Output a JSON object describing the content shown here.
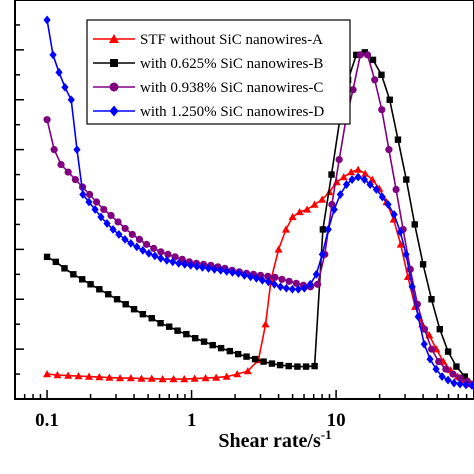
{
  "chart_data": {
    "type": "line",
    "title": "",
    "xlabel": "Shear rate/s",
    "xlabel_superscript": "-1",
    "ylabel": "",
    "x_scale": "log",
    "xlim": [
      0.06,
      90
    ],
    "ylim": [
      0,
      800
    ],
    "x_tick_labels": [
      "0.1",
      "1",
      "10"
    ],
    "x_tick_values": [
      0.1,
      1,
      10
    ],
    "grid": false,
    "legend_position": "top-right",
    "series": [
      {
        "name": "STF without SiC nanowires-A",
        "color": "#ff0000",
        "marker": "triangle",
        "x": [
          0.1,
          0.118,
          0.14,
          0.165,
          0.195,
          0.23,
          0.27,
          0.32,
          0.38,
          0.45,
          0.53,
          0.63,
          0.75,
          0.89,
          1.05,
          1.25,
          1.48,
          1.75,
          2.07,
          2.45,
          2.9,
          3.25,
          3.55,
          4.0,
          4.5,
          5.0,
          5.6,
          6.3,
          7.1,
          8.0,
          9.0,
          10.1,
          11.3,
          12.7,
          14.2,
          15.9,
          17.8,
          19.9,
          22.3,
          25.0,
          28.0,
          31.4,
          35.2,
          39.4,
          44.1,
          49.4,
          55.3,
          62.0,
          69.4,
          77.7,
          87.0
        ],
        "y": [
          50,
          48,
          47,
          46,
          45,
          44,
          43,
          42,
          42,
          41,
          41,
          40,
          40,
          40,
          41,
          42,
          43,
          45,
          50,
          56,
          78,
          150,
          240,
          300,
          340,
          365,
          375,
          380,
          390,
          400,
          415,
          435,
          445,
          455,
          460,
          452,
          440,
          422,
          395,
          360,
          310,
          245,
          185,
          150,
          128,
          100,
          75,
          58,
          45,
          38,
          30
        ]
      },
      {
        "name": "with 0.625% SiC nanowires-B",
        "color": "#000000",
        "marker": "square",
        "x": [
          0.1,
          0.115,
          0.132,
          0.152,
          0.175,
          0.2,
          0.23,
          0.265,
          0.305,
          0.35,
          0.4,
          0.46,
          0.53,
          0.61,
          0.7,
          0.8,
          0.92,
          1.06,
          1.22,
          1.4,
          1.6,
          1.84,
          2.1,
          2.4,
          2.75,
          3.15,
          3.6,
          4.1,
          4.7,
          5.4,
          6.2,
          7.1,
          8.1,
          9.3,
          10.6,
          12.1,
          13.8,
          15.8,
          18.0,
          20.6,
          23.5,
          26.8,
          30.6,
          35.0,
          40.0,
          45.7,
          52.2,
          59.6,
          68.0,
          77.7,
          88.7
        ],
        "y": [
          285,
          275,
          262,
          250,
          240,
          230,
          220,
          210,
          200,
          190,
          180,
          170,
          162,
          152,
          145,
          137,
          130,
          122,
          115,
          108,
          102,
          96,
          90,
          85,
          80,
          75,
          71,
          68,
          66,
          65,
          65,
          66,
          340,
          450,
          560,
          640,
          690,
          695,
          680,
          650,
          600,
          520,
          440,
          350,
          270,
          200,
          140,
          95,
          65,
          45,
          30
        ]
      },
      {
        "name": "with 0.938% SiC nanowires-C",
        "color": "#800080",
        "marker": "circle",
        "x": [
          0.1,
          0.112,
          0.125,
          0.14,
          0.157,
          0.176,
          0.197,
          0.22,
          0.247,
          0.277,
          0.31,
          0.347,
          0.389,
          0.436,
          0.488,
          0.547,
          0.613,
          0.686,
          0.769,
          0.861,
          0.965,
          1.08,
          1.21,
          1.36,
          1.52,
          1.7,
          1.91,
          2.14,
          2.4,
          2.68,
          3.0,
          3.37,
          3.77,
          4.22,
          4.73,
          5.3,
          5.94,
          6.65,
          7.45,
          8.35,
          9.35,
          10.5,
          11.7,
          13.1,
          14.7,
          16.5,
          18.5,
          20.7,
          23.2,
          26.0,
          29.1,
          32.6,
          36.5,
          40.9,
          45.8,
          51.3,
          57.5,
          64.4,
          72.1,
          80.8,
          90.0
        ],
        "y": [
          560,
          500,
          470,
          455,
          440,
          425,
          410,
          395,
          380,
          368,
          355,
          342,
          330,
          320,
          310,
          302,
          295,
          290,
          285,
          280,
          275,
          272,
          270,
          268,
          265,
          262,
          258,
          255,
          252,
          250,
          248,
          246,
          244,
          240,
          236,
          232,
          228,
          225,
          230,
          290,
          390,
          480,
          560,
          620,
          690,
          690,
          640,
          580,
          500,
          420,
          340,
          260,
          190,
          140,
          100,
          75,
          60,
          50,
          42,
          36,
          30
        ]
      },
      {
        "name": "with 1.250% SiC nanowires-D",
        "color": "#0000ff",
        "marker": "diamond",
        "x": [
          0.1,
          0.11,
          0.121,
          0.133,
          0.147,
          0.161,
          0.177,
          0.195,
          0.215,
          0.236,
          0.26,
          0.286,
          0.314,
          0.346,
          0.38,
          0.418,
          0.46,
          0.506,
          0.557,
          0.612,
          0.674,
          0.741,
          0.815,
          0.897,
          0.987,
          1.09,
          1.19,
          1.31,
          1.44,
          1.59,
          1.75,
          1.92,
          2.11,
          2.32,
          2.56,
          2.81,
          3.09,
          3.4,
          3.74,
          4.12,
          4.53,
          4.98,
          5.48,
          6.03,
          6.63,
          7.3,
          8.03,
          8.83,
          9.71,
          10.7,
          11.8,
          12.9,
          14.2,
          15.7,
          17.2,
          19.0,
          20.9,
          22.9,
          25.2,
          27.8,
          30.5,
          33.6,
          37.0,
          40.7,
          44.7,
          49.2,
          54.1,
          59.5,
          65.5,
          72.0,
          79.2,
          87.1
        ],
        "y": [
          760,
          690,
          655,
          625,
          600,
          500,
          410,
          395,
          380,
          365,
          352,
          340,
          330,
          320,
          312,
          305,
          298,
          292,
          287,
          282,
          278,
          275,
          272,
          270,
          268,
          266,
          264,
          262,
          260,
          258,
          256,
          254,
          252,
          248,
          245,
          242,
          238,
          235,
          230,
          225,
          222,
          220,
          220,
          222,
          230,
          250,
          290,
          340,
          380,
          410,
          430,
          440,
          445,
          440,
          430,
          420,
          405,
          390,
          370,
          335,
          290,
          225,
          165,
          110,
          80,
          60,
          45,
          38,
          32,
          30,
          28,
          27
        ]
      }
    ]
  }
}
